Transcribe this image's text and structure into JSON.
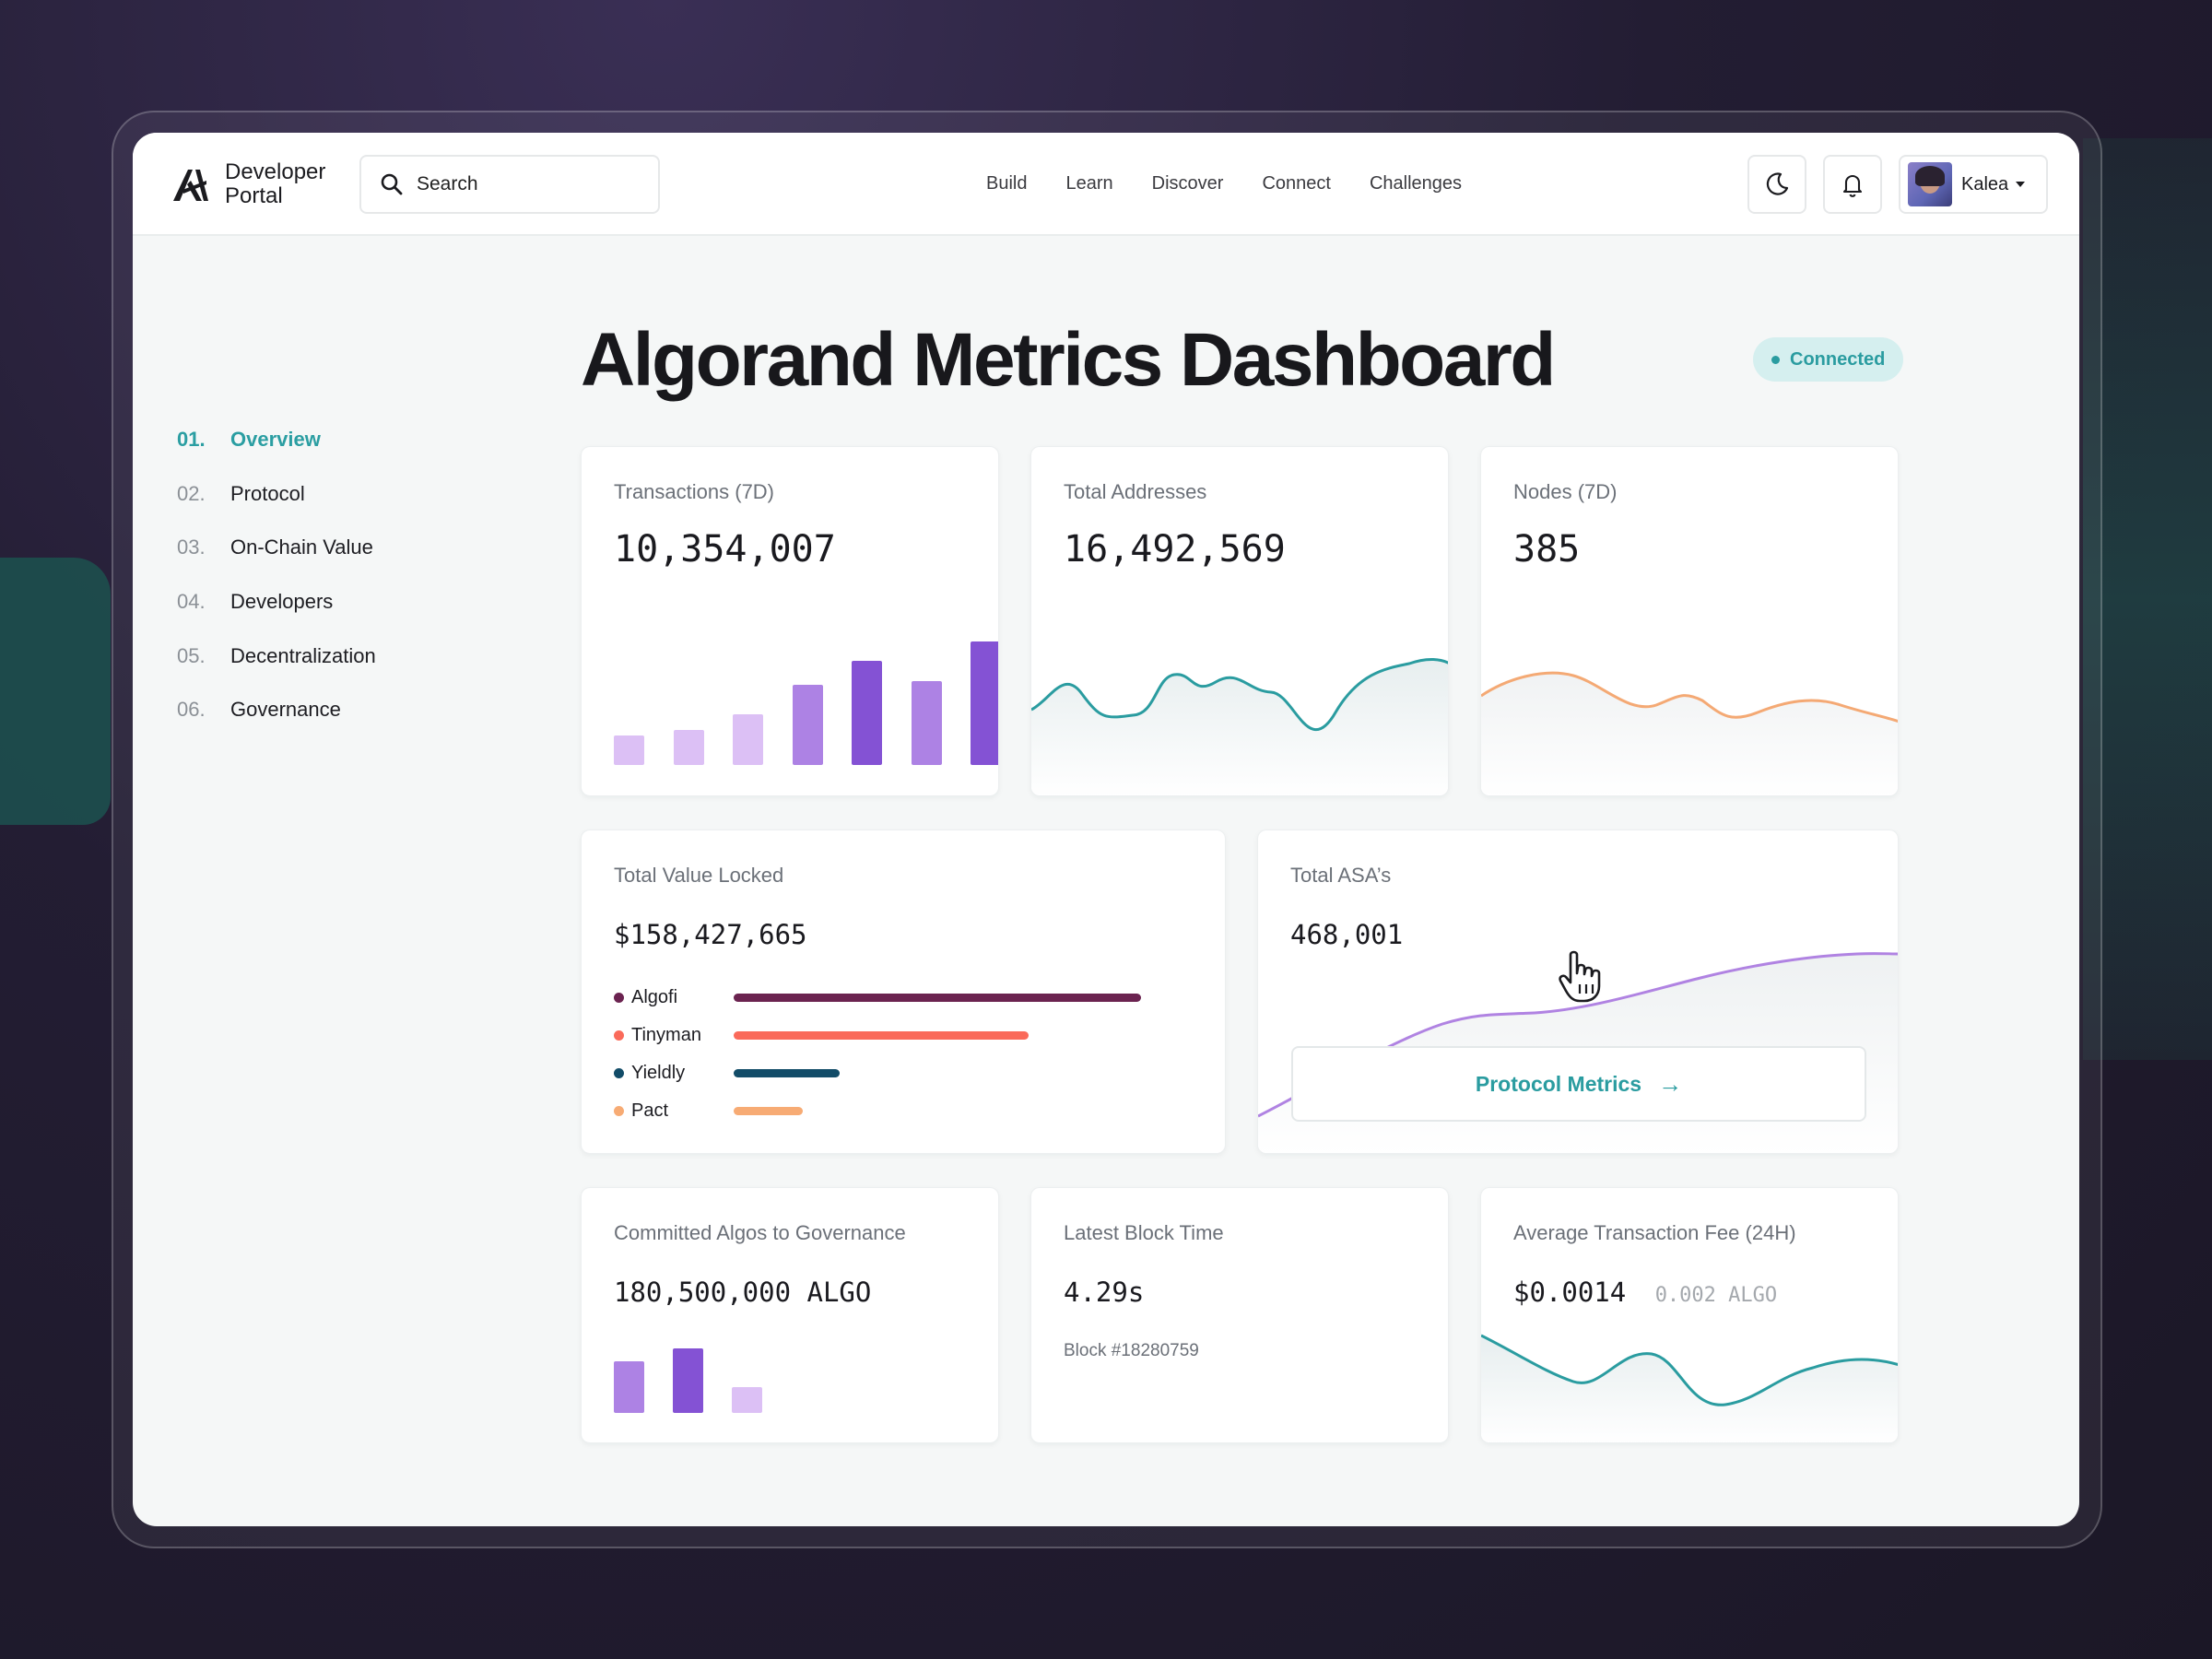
{
  "brand": {
    "name_line1": "Developer",
    "name_line2": "Portal"
  },
  "search": {
    "placeholder": "Search"
  },
  "nav": {
    "links": [
      "Build",
      "Learn",
      "Discover",
      "Connect",
      "Challenges"
    ]
  },
  "user": {
    "name": "Kalea"
  },
  "page": {
    "title": "Algorand Metrics Dashboard",
    "status": "Connected"
  },
  "sidebar": {
    "items": [
      {
        "num": "01.",
        "label": "Overview",
        "active": true
      },
      {
        "num": "02.",
        "label": "Protocol"
      },
      {
        "num": "03.",
        "label": "On-Chain Value"
      },
      {
        "num": "04.",
        "label": "Developers"
      },
      {
        "num": "05.",
        "label": "Decentralization"
      },
      {
        "num": "06.",
        "label": "Governance"
      }
    ]
  },
  "cards": {
    "transactions": {
      "label": "Transactions (7D)",
      "value": "10,354,007",
      "bars": [
        0.24,
        0.28,
        0.41,
        0.65,
        0.84,
        0.68,
        1.0
      ]
    },
    "addresses": {
      "label": "Total Addresses",
      "value": "16,492,569"
    },
    "nodes": {
      "label": "Nodes (7D)",
      "value": "385"
    },
    "tvl": {
      "label": "Total Value Locked",
      "value": "$158,427,665",
      "protocols": [
        {
          "name": "Algofi",
          "share": 1.0,
          "color": "#6b2350"
        },
        {
          "name": "Tinyman",
          "share": 0.725,
          "color": "#fa6a5a"
        },
        {
          "name": "Yieldly",
          "share": 0.26,
          "color": "#124c68"
        },
        {
          "name": "Pact",
          "share": 0.17,
          "color": "#f7ab74"
        }
      ]
    },
    "asa": {
      "label": "Total ASA’s",
      "value": "468,001",
      "button": "Protocol Metrics"
    },
    "governance": {
      "label": "Committed Algos to Governance",
      "value": "180,500,000 ALGO",
      "bars": [
        0.8,
        1.0,
        0.4
      ]
    },
    "block": {
      "label": "Latest Block Time",
      "value": "4.29s",
      "sub": "Block #18280759"
    },
    "fee": {
      "label": "Average Transaction Fee (24H)",
      "value": "$0.0014",
      "sub": "0.002 ALGO"
    }
  },
  "colors": {
    "accent": "#2a9ca0",
    "purple_light": "#dcc0f5",
    "purple_mid": "#ad82e4",
    "purple_dark": "#8452d4",
    "orange_line": "#f4a974",
    "asa_line": "#b083e2"
  }
}
